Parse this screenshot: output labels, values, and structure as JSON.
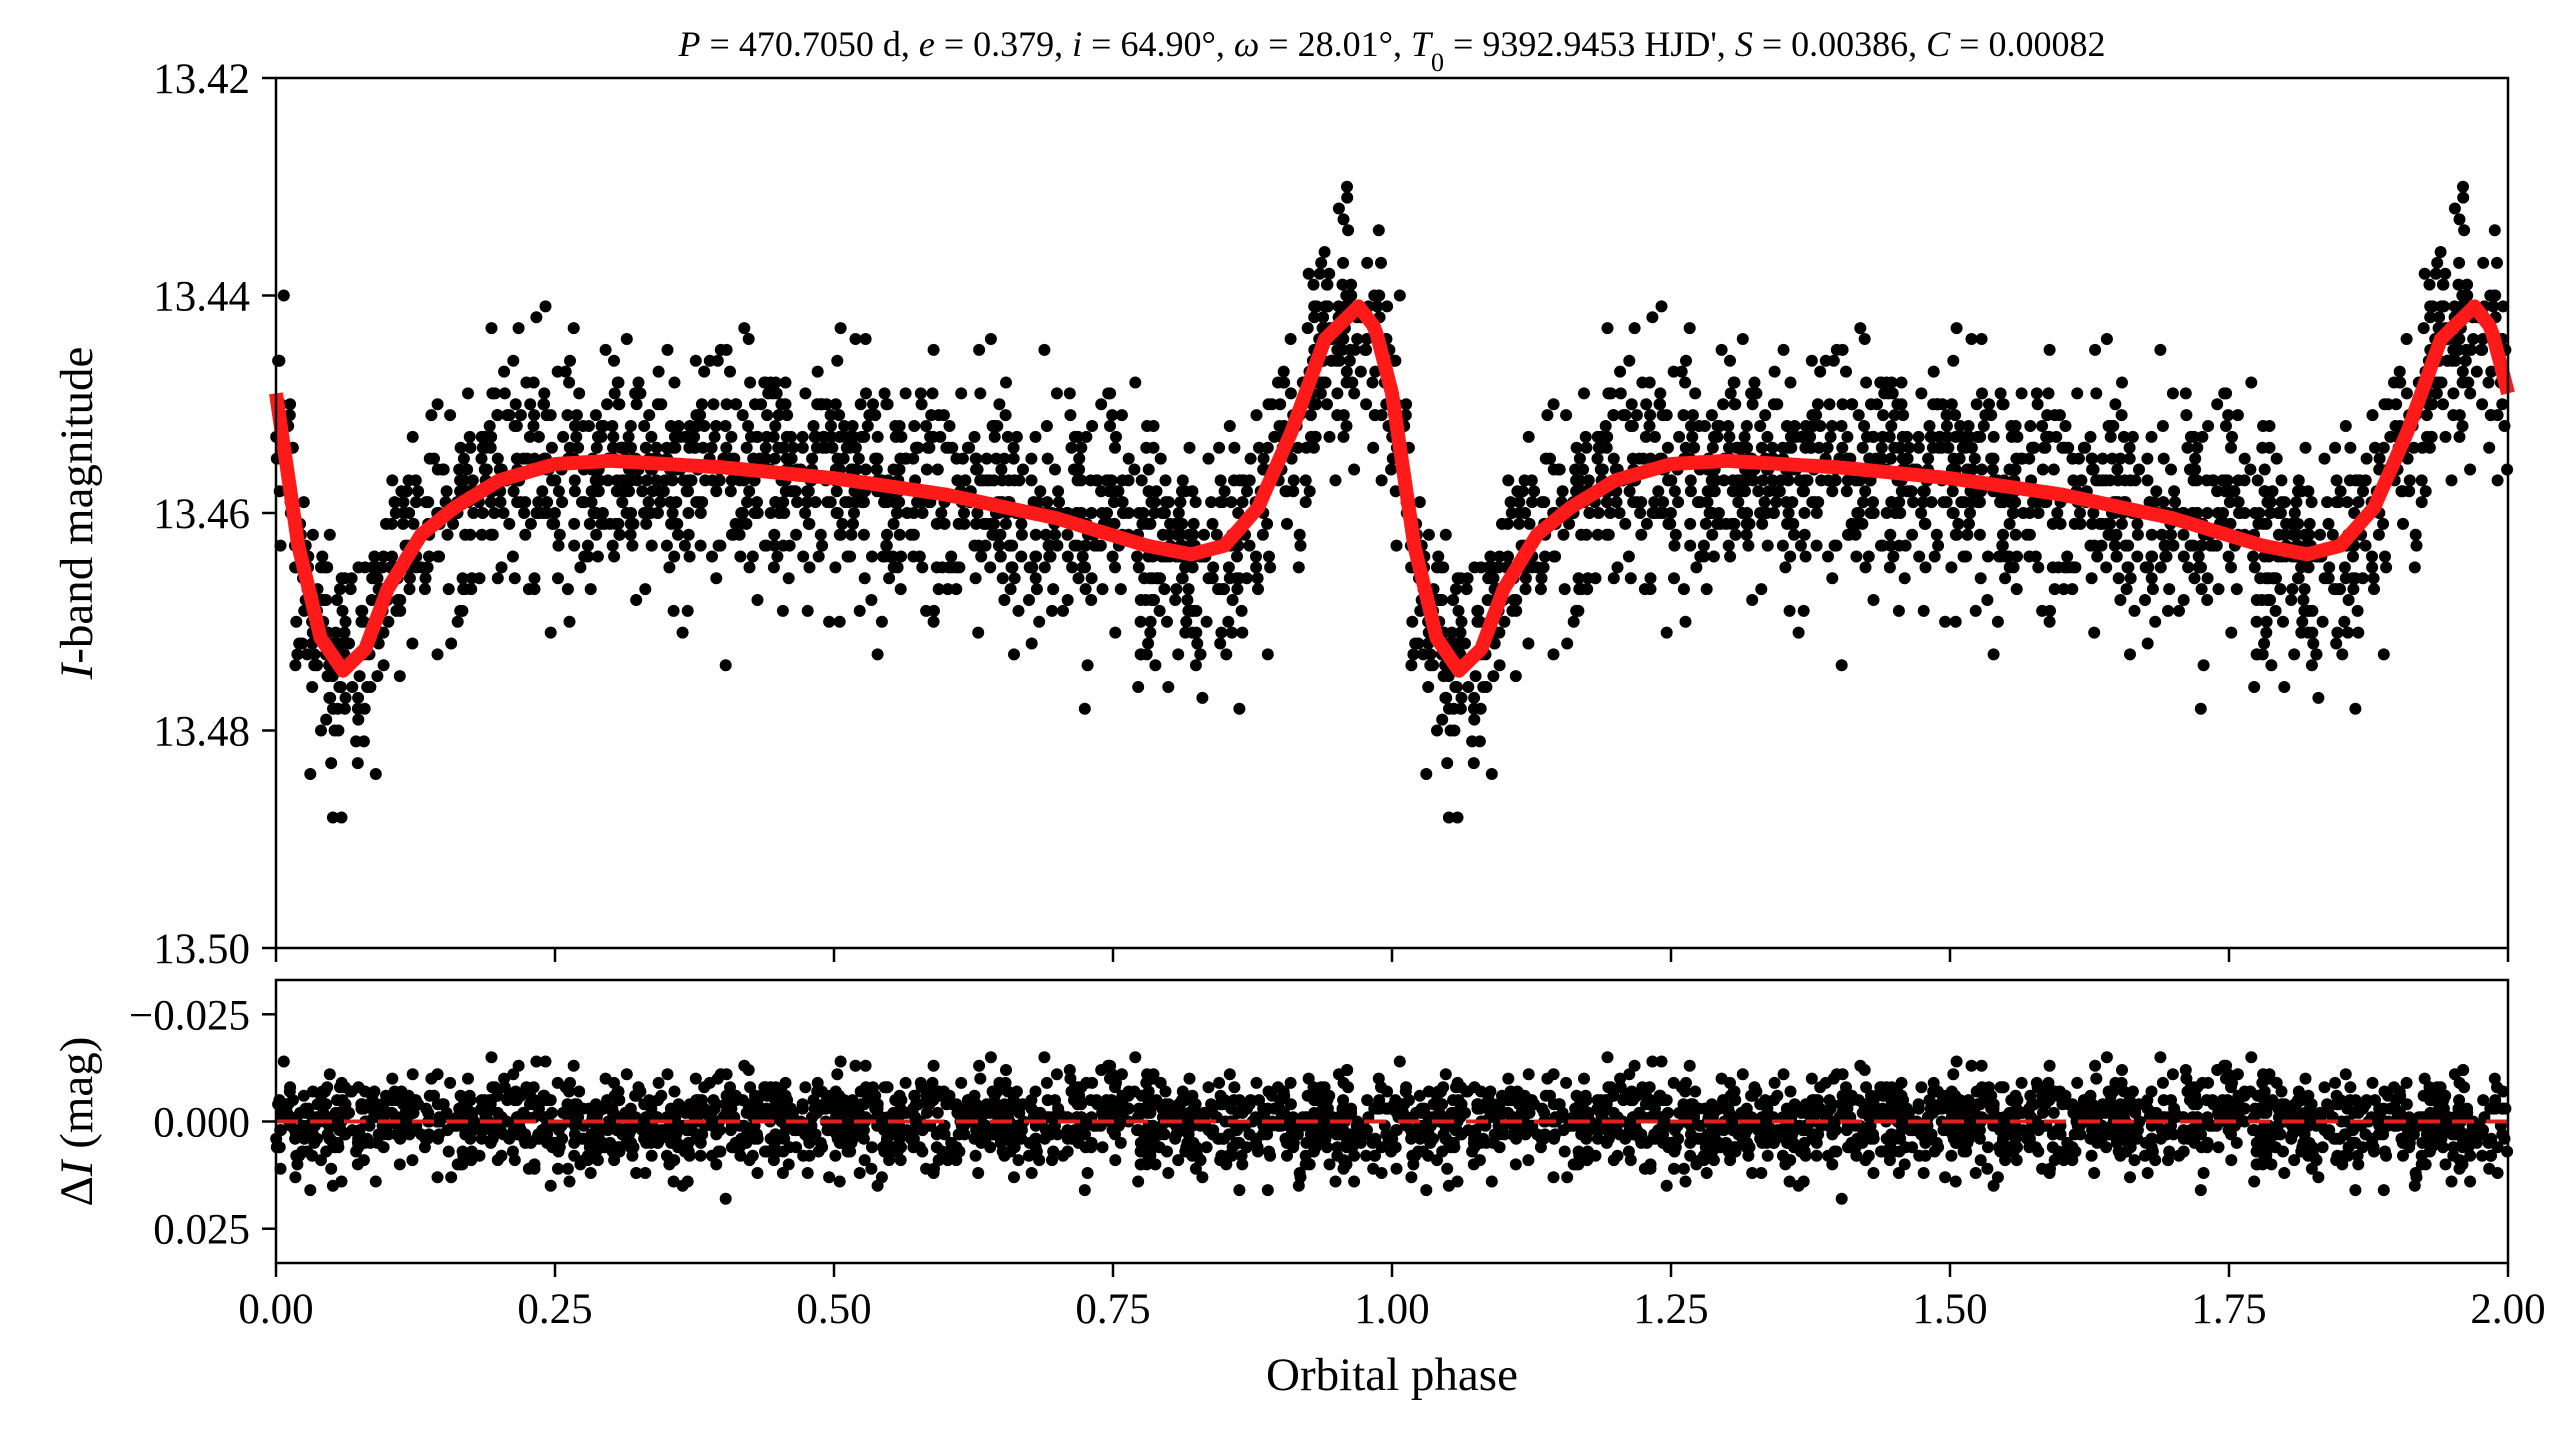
{
  "chart_data": [
    {
      "type": "scatter",
      "panel": "top",
      "title": "P = 470.7050 d, e = 0.379, i = 64.90°, ω = 28.01°, T0 = 9392.9453 HJD', S = 0.00386, C = 0.00082",
      "title_segments": [
        {
          "text": "P",
          "italic": true
        },
        {
          "text": " = 470.7050 d, "
        },
        {
          "text": "e",
          "italic": true
        },
        {
          "text": " = 0.379, "
        },
        {
          "text": "i",
          "italic": true
        },
        {
          "text": " = 64.90°, "
        },
        {
          "text": "ω",
          "italic": true
        },
        {
          "text": " = 28.01°, "
        },
        {
          "text": "T",
          "italic": true
        },
        {
          "text": "0",
          "sub": true
        },
        {
          "text": " = 9392.9453 HJD', "
        },
        {
          "text": "S",
          "italic": true
        },
        {
          "text": " = 0.00386, "
        },
        {
          "text": "C",
          "italic": true
        },
        {
          "text": " = 0.00082"
        }
      ],
      "xlabel": "Orbital phase",
      "ylabel": "I-band magnitude",
      "ylabel_segments": [
        {
          "text": "I",
          "italic": true
        },
        {
          "text": "-band magnitude"
        }
      ],
      "xlim": [
        0.0,
        2.0
      ],
      "ylim": [
        13.5,
        13.42
      ],
      "y_inverted": true,
      "xticks": [
        0.0,
        0.25,
        0.5,
        0.75,
        1.0,
        1.25,
        1.5,
        1.75,
        2.0
      ],
      "yticks": [
        "13.42",
        "13.44",
        "13.46",
        "13.48",
        "13.50"
      ],
      "grid": false,
      "series": [
        {
          "kind": "points",
          "color": "#000000",
          "approximate_point_count_per_cycle": 1500,
          "x_data_repeats_with_period": 1.0
        },
        {
          "kind": "line",
          "color": "#ff1a1a",
          "x": [
            0.0,
            0.02,
            0.04,
            0.06,
            0.08,
            0.1,
            0.13,
            0.16,
            0.2,
            0.25,
            0.3,
            0.4,
            0.5,
            0.6,
            0.7,
            0.78,
            0.82,
            0.85,
            0.88,
            0.91,
            0.94,
            0.97,
            0.985,
            1.0,
            1.02,
            1.04,
            1.06,
            1.08,
            1.1,
            1.13,
            1.16,
            1.2,
            1.25,
            1.3,
            1.4,
            1.5,
            1.6,
            1.7,
            1.78,
            1.82,
            1.85,
            1.88,
            1.91,
            1.94,
            1.97,
            1.985,
            2.0
          ],
          "y": [
            13.449,
            13.463,
            13.4715,
            13.4745,
            13.4725,
            13.467,
            13.462,
            13.4595,
            13.457,
            13.4555,
            13.4552,
            13.4558,
            13.4568,
            13.4583,
            13.4605,
            13.463,
            13.4638,
            13.463,
            13.4595,
            13.4525,
            13.444,
            13.441,
            13.443,
            13.449,
            13.463,
            13.4715,
            13.4745,
            13.4725,
            13.467,
            13.462,
            13.4595,
            13.457,
            13.4555,
            13.4552,
            13.4558,
            13.4568,
            13.4583,
            13.4605,
            13.463,
            13.4638,
            13.463,
            13.4595,
            13.4525,
            13.444,
            13.441,
            13.443,
            13.449
          ]
        }
      ]
    },
    {
      "type": "scatter",
      "panel": "bottom",
      "xlabel": "Orbital phase",
      "ylabel": "ΔI (mag)",
      "ylabel_segments": [
        {
          "text": "Δ"
        },
        {
          "text": "I",
          "italic": true
        },
        {
          "text": " (mag)"
        }
      ],
      "xlim": [
        0.0,
        2.0
      ],
      "ylim": [
        0.033,
        -0.033
      ],
      "y_inverted": true,
      "xticks": [
        0.0,
        0.25,
        0.5,
        0.75,
        1.0,
        1.25,
        1.5,
        1.75,
        2.0
      ],
      "xtick_labels": [
        "0.00",
        "0.25",
        "0.50",
        "0.75",
        "1.00",
        "1.25",
        "1.50",
        "1.75",
        "2.00"
      ],
      "yticks": [
        -0.025,
        0.0,
        0.025
      ],
      "ytick_labels": [
        "−0.025",
        "0.000",
        "0.025"
      ],
      "reference_line": {
        "y": 0.0,
        "style": "dashed",
        "color": "#e0201c"
      },
      "residual_scatter_mag": 0.0055,
      "grid": false
    }
  ]
}
